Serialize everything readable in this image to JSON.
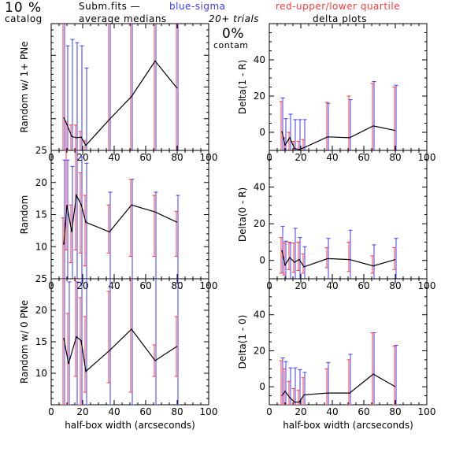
{
  "header": {
    "percent": "10 %",
    "catalog": "catalog",
    "subm": "Subm.fits  —",
    "blue_label": "blue-sigma",
    "red_label": "red-upper/lower quartile",
    "average_medians": "average medians",
    "trials": "20+ trials",
    "delta_plots": "delta plots",
    "contam_pct": "0%",
    "contam_label": "contam"
  },
  "colors": {
    "blue": "#3b3bff",
    "red": "#ff3b3b",
    "line": "#000000"
  },
  "chart_data": [
    {
      "type": "line",
      "position": "left-top",
      "ylabel": "Random w/ 1+ PNe",
      "xlabel": "",
      "xlim": [
        0,
        100
      ],
      "ylim": [
        5,
        25
      ],
      "x_ticks": [
        "0",
        "20",
        "40",
        "60",
        "80",
        "100"
      ],
      "y_ticks": [],
      "x": [
        8,
        10,
        13,
        16,
        19,
        22,
        37,
        51,
        66,
        80
      ],
      "y": [
        10.2,
        9.1,
        7.2,
        7.0,
        7.1,
        5.8,
        9.9,
        13.5,
        19.1,
        14.8
      ],
      "blue_err": [
        [
          5.0,
          27.0
        ],
        [
          5.0,
          21.5
        ],
        [
          5.0,
          22.5
        ],
        [
          5.0,
          22.0
        ],
        [
          5.0,
          21.5
        ],
        [
          5.0,
          18.0
        ],
        [
          5.0,
          26.5
        ],
        [
          5.0,
          30.0
        ],
        [
          5.0,
          30.0
        ],
        [
          5.0,
          30.0
        ]
      ],
      "red_err": [
        [
          5.0,
          27.0
        ],
        [
          5.0,
          9.5
        ],
        [
          5.0,
          9.0
        ],
        [
          5.0,
          9.0
        ],
        [
          5.0,
          8.0
        ],
        [
          5.0,
          6.5
        ],
        [
          5.0,
          26.0
        ],
        [
          5.0,
          30.0
        ],
        [
          5.0,
          30.0
        ],
        [
          5.0,
          30.0
        ]
      ]
    },
    {
      "type": "line",
      "position": "right-top",
      "ylabel": "Delta(1 - R)",
      "xlabel": "",
      "xlim": [
        0,
        100
      ],
      "ylim": [
        -10,
        60
      ],
      "x_ticks": [
        "0",
        "20",
        "40",
        "60",
        "80",
        "100"
      ],
      "y_ticks": [
        "0",
        "20",
        "40"
      ],
      "x": [
        8,
        10,
        13,
        16,
        19,
        22,
        37,
        51,
        66,
        80
      ],
      "y": [
        0.5,
        -7.0,
        -3.0,
        -9.0,
        -9.5,
        -8.5,
        -2.5,
        -3.0,
        3.5,
        1.0
      ],
      "blue_err": [
        [
          -10.0,
          19.0
        ],
        [
          -10.0,
          7.5
        ],
        [
          -10.0,
          10.0
        ],
        [
          -10.0,
          7.0
        ],
        [
          -10.0,
          7.0
        ],
        [
          -10.0,
          7.0
        ],
        [
          -10.0,
          16.0
        ],
        [
          -10.0,
          18.0
        ],
        [
          -10.0,
          28.0
        ],
        [
          -10.0,
          26.0
        ]
      ],
      "red_err": [
        [
          -10.0,
          17.0
        ],
        [
          -10.0,
          -3.0
        ],
        [
          -10.0,
          0.0
        ],
        [
          -10.0,
          -5.0
        ],
        [
          -10.0,
          -5.0
        ],
        [
          -10.0,
          -4.0
        ],
        [
          -10.0,
          16.5
        ],
        [
          -10.0,
          20.0
        ],
        [
          -10.0,
          27.0
        ],
        [
          -10.0,
          25.0
        ]
      ]
    },
    {
      "type": "line",
      "position": "left-middle",
      "ylabel": "Random",
      "xlabel": "",
      "xlim": [
        0,
        100
      ],
      "ylim": [
        5,
        25
      ],
      "x_ticks": [
        "0",
        "20",
        "40",
        "60",
        "80",
        "100"
      ],
      "y_ticks": [
        "10",
        "15",
        "20",
        "25"
      ],
      "x": [
        8,
        10,
        13,
        16,
        19,
        22,
        37,
        51,
        66,
        80
      ],
      "y": [
        10.3,
        16.5,
        12.3,
        18.0,
        16.6,
        13.8,
        12.3,
        16.5,
        15.4,
        13.8
      ],
      "blue_err": [
        [
          5.0,
          23.5
        ],
        [
          5.0,
          23.5
        ],
        [
          5.0,
          22.5
        ],
        [
          5.0,
          25.0
        ],
        [
          5.0,
          24.0
        ],
        [
          5.0,
          23.0
        ],
        [
          5.0,
          18.5
        ],
        [
          5.0,
          20.5
        ],
        [
          5.0,
          18.5
        ],
        [
          5.0,
          18.0
        ]
      ],
      "red_err": [
        [
          5.0,
          14.5
        ],
        [
          9.5,
          25.0
        ],
        [
          7.5,
          16.5
        ],
        [
          9.5,
          25.0
        ],
        [
          9.0,
          21.5
        ],
        [
          7.0,
          18.0
        ],
        [
          9.0,
          16.5
        ],
        [
          8.5,
          20.5
        ],
        [
          8.5,
          18.0
        ],
        [
          8.5,
          15.5
        ]
      ]
    },
    {
      "type": "line",
      "position": "right-middle",
      "ylabel": "Delta(0 - R)",
      "xlabel": "",
      "xlim": [
        0,
        100
      ],
      "ylim": [
        -10,
        60
      ],
      "x_ticks": [
        "0",
        "20",
        "40",
        "60",
        "80",
        "100"
      ],
      "y_ticks": [
        "0",
        "20",
        "40"
      ],
      "x": [
        8,
        10,
        13,
        16,
        19,
        22,
        37,
        51,
        66,
        80
      ],
      "y": [
        5.5,
        -2.5,
        1.5,
        -1.0,
        0.5,
        -3.5,
        1.0,
        0.5,
        -3.0,
        0.5
      ],
      "blue_err": [
        [
          -7.0,
          18.5
        ],
        [
          -10.0,
          10.5
        ],
        [
          -10.0,
          9.5
        ],
        [
          -10.0,
          17.5
        ],
        [
          -10.0,
          12.5
        ],
        [
          -10.0,
          7.5
        ],
        [
          -10.0,
          12.0
        ],
        [
          -10.0,
          16.5
        ],
        [
          -10.0,
          8.5
        ],
        [
          -10.0,
          12.0
        ]
      ],
      "red_err": [
        [
          -7.0,
          12.5
        ],
        [
          -8.0,
          9.5
        ],
        [
          -5.0,
          10.0
        ],
        [
          -6.5,
          9.5
        ],
        [
          -5.5,
          10.0
        ],
        [
          -7.0,
          3.5
        ],
        [
          -4.0,
          7.0
        ],
        [
          -6.0,
          10.0
        ],
        [
          -7.0,
          2.5
        ],
        [
          -5.0,
          7.0
        ]
      ]
    },
    {
      "type": "line",
      "position": "left-bottom",
      "ylabel": "Random w/ 0 PNe",
      "xlabel": "half-box width (arcseconds)",
      "xlim": [
        0,
        100
      ],
      "ylim": [
        5,
        25
      ],
      "x_ticks": [
        "0",
        "20",
        "40",
        "60",
        "80",
        "100"
      ],
      "y_ticks": [
        "10",
        "15",
        "20",
        "25"
      ],
      "x": [
        8,
        11,
        16,
        19,
        22,
        37,
        51,
        66,
        80
      ],
      "y": [
        15.6,
        11.5,
        15.8,
        15.2,
        10.3,
        13.6,
        17.0,
        12.0,
        14.3
      ],
      "blue_err": [
        [
          5.0,
          25.0
        ],
        [
          5.0,
          24.5
        ],
        [
          5.0,
          24.5
        ],
        [
          5.0,
          25.0
        ],
        [
          5.0,
          25.0
        ],
        [
          5.0,
          25.0
        ],
        [
          5.0,
          25.0
        ],
        [
          5.0,
          25.0
        ],
        [
          5.0,
          25.0
        ]
      ],
      "red_err": [
        [
          5.0,
          25.0
        ],
        [
          5.0,
          19.5
        ],
        [
          9.5,
          25.0
        ],
        [
          5.0,
          22.0
        ],
        [
          7.0,
          19.0
        ],
        [
          8.5,
          23.0
        ],
        [
          7.0,
          25.0
        ],
        [
          9.5,
          14.5
        ],
        [
          9.5,
          19.0
        ]
      ]
    },
    {
      "type": "line",
      "position": "right-bottom",
      "ylabel": "Delta(1 - 0)",
      "xlabel": "half-box width (arcseconds)",
      "xlim": [
        0,
        100
      ],
      "ylim": [
        -10,
        60
      ],
      "x_ticks": [
        "0",
        "20",
        "40",
        "60",
        "80",
        "100"
      ],
      "y_ticks": [
        "0",
        "20",
        "40"
      ],
      "x": [
        8,
        10,
        13,
        16,
        19,
        22,
        37,
        51,
        66,
        80
      ],
      "y": [
        -5.0,
        -2.5,
        -6.0,
        -8.5,
        -8.5,
        -4.5,
        -3.5,
        -3.5,
        7.0,
        0.0
      ],
      "blue_err": [
        [
          -10.0,
          16.0
        ],
        [
          -10.0,
          14.0
        ],
        [
          -10.0,
          10.5
        ],
        [
          -10.0,
          10.5
        ],
        [
          -10.0,
          9.5
        ],
        [
          -10.0,
          8.0
        ],
        [
          -10.0,
          13.5
        ],
        [
          -10.0,
          18.0
        ],
        [
          -10.0,
          30.0
        ],
        [
          -10.0,
          23.0
        ]
      ],
      "red_err": [
        [
          -10.0,
          14.5
        ],
        [
          -10.0,
          10.0
        ],
        [
          -10.0,
          3.0
        ],
        [
          -10.0,
          -1.0
        ],
        [
          -10.0,
          -2.0
        ],
        [
          -10.0,
          5.0
        ],
        [
          -10.0,
          10.0
        ],
        [
          -10.0,
          15.0
        ],
        [
          -10.0,
          30.0
        ],
        [
          -10.0,
          22.5
        ]
      ]
    }
  ]
}
